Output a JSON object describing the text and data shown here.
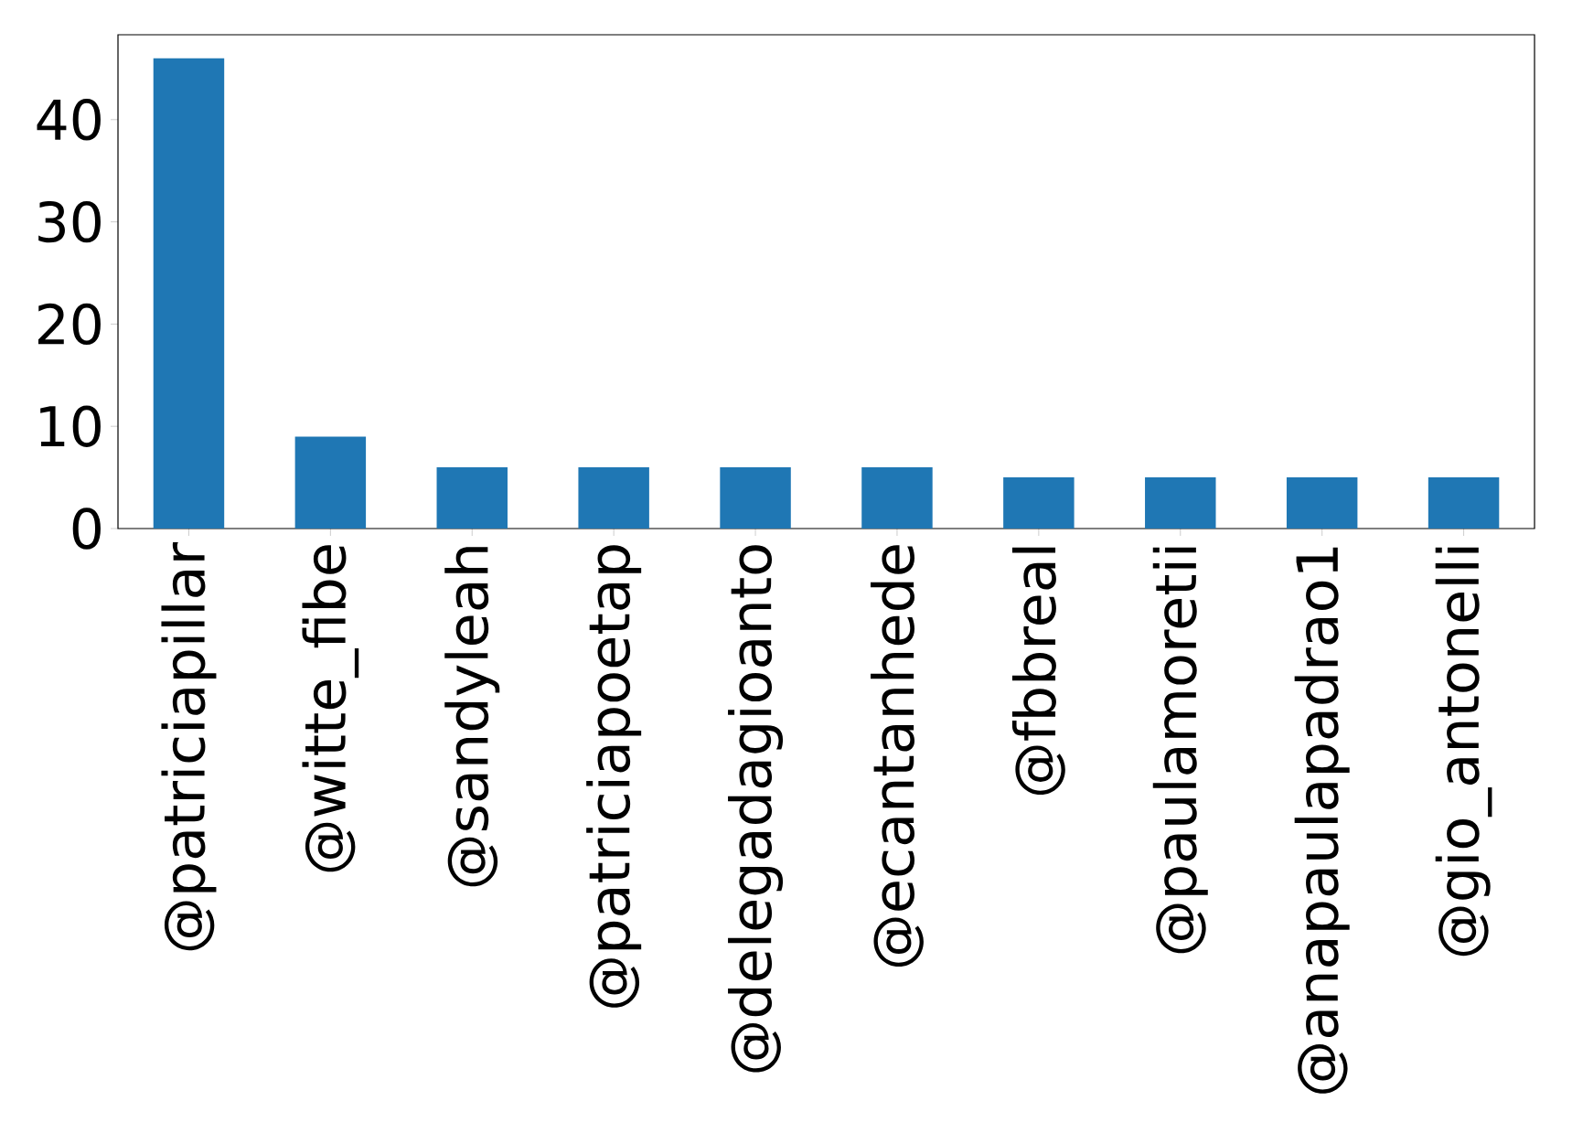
{
  "chart_data": {
    "type": "bar",
    "categories": [
      "@patriciapillar",
      "@witte_fibe",
      "@sandyleah",
      "@patriciapoetap",
      "@delegadagioanto",
      "@ecantanhede",
      "@fbbreal",
      "@paulamoretii",
      "@anapaulapadrao1",
      "@gio_antonelli"
    ],
    "values": [
      46,
      9,
      6,
      6,
      6,
      6,
      5,
      5,
      5,
      5
    ],
    "color": "#1f77b4",
    "ylim": [
      0,
      48.3
    ],
    "yticks": [
      0,
      10,
      20,
      30,
      40
    ],
    "grid": false
  }
}
